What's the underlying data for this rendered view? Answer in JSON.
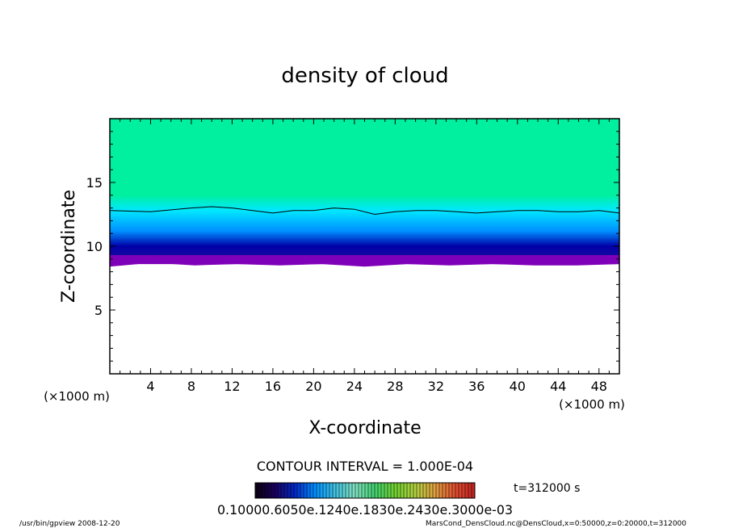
{
  "chart_data": {
    "type": "heatmap",
    "title": "density of cloud",
    "xlabel": "X-coordinate",
    "ylabel": "Z-coordinate",
    "x_units": "(×1000 m)",
    "y_units": "(×1000 m)",
    "xlim": [
      0,
      50
    ],
    "ylim": [
      0,
      20
    ],
    "x_ticks": [
      4,
      8,
      12,
      16,
      20,
      24,
      28,
      32,
      36,
      40,
      44,
      48
    ],
    "y_ticks": [
      5,
      10,
      15
    ],
    "contour_interval": "CONTOUR INTERVAL = 1.000E-04",
    "time_label": "t=312000 s",
    "colorbar_labels": "0.10000.6050e.1240e.1830e.2430e.3000e-03",
    "cloud_base_z": [
      8.4,
      8.7,
      8.5,
      8.6,
      8.5,
      8.6,
      8.4,
      8.6,
      8.5,
      8.6,
      8.5,
      8.5,
      8.6
    ],
    "contour_line": {
      "x": [
        0,
        4,
        8,
        10,
        12,
        14,
        16,
        18,
        20,
        22,
        24,
        26,
        28,
        30,
        32,
        34,
        36,
        38,
        40,
        42,
        44,
        46,
        48,
        50
      ],
      "z": [
        12.8,
        12.7,
        13.0,
        13.1,
        13.0,
        12.8,
        12.6,
        12.8,
        12.8,
        13.0,
        12.9,
        12.5,
        12.7,
        12.8,
        12.8,
        12.7,
        12.6,
        12.7,
        12.8,
        12.8,
        12.7,
        12.7,
        12.8,
        12.6
      ]
    },
    "colors": {
      "top": "#00f0a0",
      "mid": "#00e8ff",
      "dark": "#0000a8",
      "base": "#7e00b8"
    },
    "colorbar_colors": [
      "#0a0010",
      "#1a0060",
      "#0028c8",
      "#0090ff",
      "#40c0e0",
      "#80e0c0",
      "#40d070",
      "#70d030",
      "#b0d040",
      "#e0a040",
      "#e05030",
      "#c02020"
    ]
  },
  "footer": {
    "left": "/usr/bin/gpview   2008-12-20",
    "right": "MarsCond_DensCloud.nc@DensCloud,x=0:50000,z=0:20000,t=312000"
  }
}
